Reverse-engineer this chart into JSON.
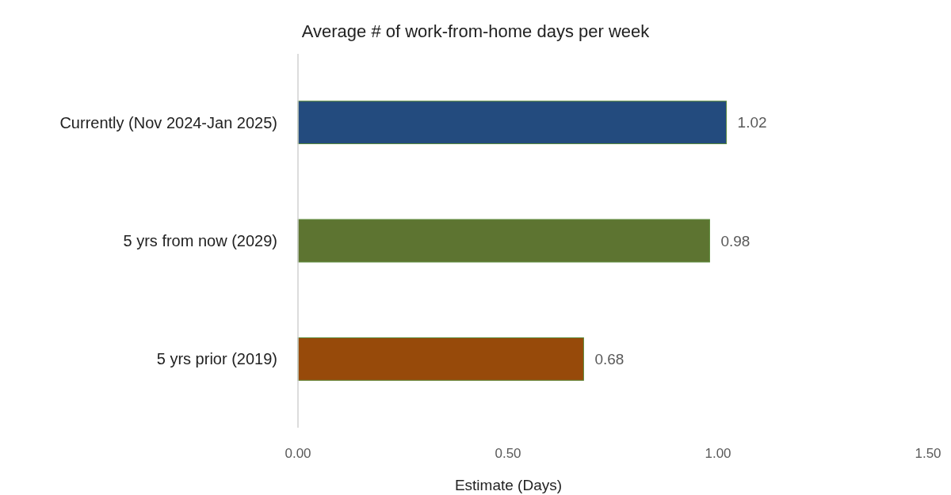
{
  "chart_data": {
    "type": "bar",
    "orientation": "horizontal",
    "title": "Average # of work-from-home days per week",
    "xlabel": "Estimate (Days)",
    "categories": [
      "Currently (Nov 2024-Jan 2025)",
      "5 yrs from now (2029)",
      "5 yrs prior (2019)"
    ],
    "values": [
      1.02,
      0.98,
      0.68
    ],
    "colors": [
      "#234b7e",
      "#5d7431",
      "#974a0a"
    ],
    "xlim": [
      0,
      1.5
    ],
    "xticks": [
      {
        "value": 0,
        "label": "0.00"
      },
      {
        "value": 0.5,
        "label": "0.50"
      },
      {
        "value": 1,
        "label": "1.00"
      },
      {
        "value": 1.5,
        "label": "1.50"
      }
    ],
    "data_labels": true,
    "grid": false
  }
}
